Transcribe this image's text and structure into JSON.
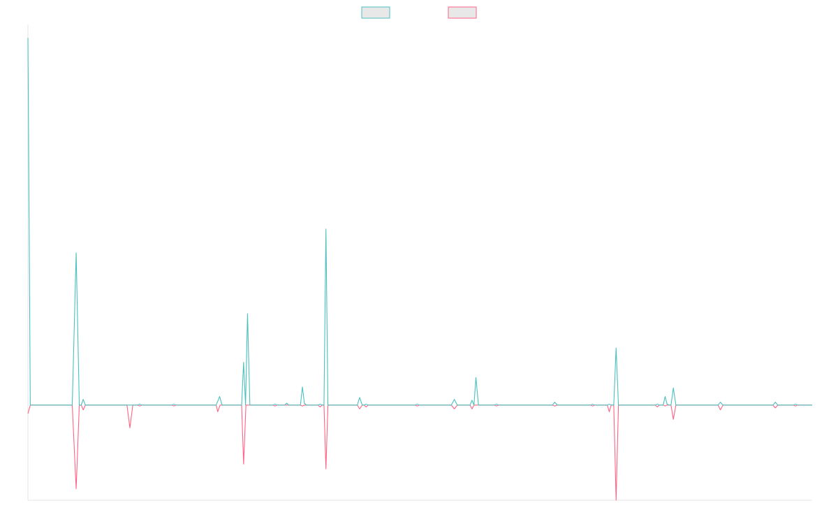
{
  "chart_data": {
    "type": "line",
    "title": "",
    "xlabel": "",
    "ylabel": "",
    "grid": false,
    "legend_position": "top-center",
    "ylim": [
      -1.0,
      4.0
    ],
    "series": [
      {
        "color": "#4bc0c0",
        "fill": "#e8e8e8",
        "points": [
          [
            0.0,
            3.86
          ],
          [
            0.12,
            0.0
          ],
          [
            2.26,
            0.0
          ],
          [
            2.46,
            1.6
          ],
          [
            2.62,
            0.0
          ],
          [
            2.72,
            0.0
          ],
          [
            2.82,
            0.06
          ],
          [
            2.93,
            0.0
          ],
          [
            5.6,
            0.0
          ],
          [
            5.7,
            0.01
          ],
          [
            5.8,
            0.0
          ],
          [
            7.35,
            0.0
          ],
          [
            7.45,
            0.01
          ],
          [
            7.55,
            0.0
          ],
          [
            9.6,
            0.0
          ],
          [
            9.78,
            0.09
          ],
          [
            9.9,
            0.0
          ],
          [
            10.9,
            0.0
          ],
          [
            11.0,
            0.45
          ],
          [
            11.1,
            0.0
          ],
          [
            11.2,
            0.96
          ],
          [
            11.32,
            0.0
          ],
          [
            12.5,
            0.0
          ],
          [
            12.6,
            0.01
          ],
          [
            12.7,
            0.0
          ],
          [
            13.1,
            0.0
          ],
          [
            13.2,
            0.02
          ],
          [
            13.3,
            0.0
          ],
          [
            13.9,
            0.0
          ],
          [
            14.0,
            0.19
          ],
          [
            14.1,
            0.02
          ],
          [
            14.2,
            0.0
          ],
          [
            14.8,
            0.0
          ],
          [
            14.9,
            0.01
          ],
          [
            15.0,
            0.0
          ],
          [
            15.1,
            0.0
          ],
          [
            15.2,
            1.85
          ],
          [
            15.3,
            0.0
          ],
          [
            16.8,
            0.0
          ],
          [
            16.92,
            0.08
          ],
          [
            17.05,
            0.0
          ],
          [
            17.15,
            0.0
          ],
          [
            17.25,
            0.01
          ],
          [
            17.35,
            0.0
          ],
          [
            19.75,
            0.0
          ],
          [
            19.85,
            0.01
          ],
          [
            19.95,
            0.0
          ],
          [
            21.6,
            0.0
          ],
          [
            21.75,
            0.06
          ],
          [
            21.9,
            0.0
          ],
          [
            22.55,
            0.0
          ],
          [
            22.65,
            0.05
          ],
          [
            22.75,
            0.0
          ],
          [
            22.85,
            0.29
          ],
          [
            22.98,
            0.0
          ],
          [
            23.8,
            0.0
          ],
          [
            23.9,
            0.01
          ],
          [
            24.0,
            0.0
          ],
          [
            26.75,
            0.0
          ],
          [
            26.87,
            0.03
          ],
          [
            27.0,
            0.0
          ],
          [
            28.7,
            0.0
          ],
          [
            28.8,
            0.01
          ],
          [
            28.9,
            0.0
          ],
          [
            29.55,
            0.0
          ],
          [
            29.65,
            0.01
          ],
          [
            29.75,
            0.0
          ],
          [
            29.88,
            0.0
          ],
          [
            30.0,
            0.6
          ],
          [
            30.12,
            0.0
          ],
          [
            32.0,
            0.0
          ],
          [
            32.1,
            0.01
          ],
          [
            32.2,
            0.0
          ],
          [
            32.4,
            0.0
          ],
          [
            32.5,
            0.09
          ],
          [
            32.6,
            0.01
          ],
          [
            32.7,
            0.0
          ],
          [
            32.8,
            0.0
          ],
          [
            32.92,
            0.18
          ],
          [
            33.05,
            0.0
          ],
          [
            35.2,
            0.0
          ],
          [
            35.32,
            0.03
          ],
          [
            35.45,
            0.0
          ],
          [
            38.0,
            0.0
          ],
          [
            38.12,
            0.03
          ],
          [
            38.25,
            0.0
          ],
          [
            39.05,
            0.0
          ],
          [
            39.15,
            0.01
          ],
          [
            39.25,
            0.0
          ],
          [
            40.0,
            0.0
          ]
        ]
      },
      {
        "color": "#ff6384",
        "fill": "#e8e8e8",
        "points": [
          [
            0.0,
            -0.09
          ],
          [
            0.12,
            0.0
          ],
          [
            2.26,
            0.0
          ],
          [
            2.46,
            -0.88
          ],
          [
            2.62,
            0.0
          ],
          [
            2.72,
            0.0
          ],
          [
            2.82,
            -0.05
          ],
          [
            2.93,
            0.0
          ],
          [
            5.6,
            0.0
          ],
          [
            5.7,
            -0.01
          ],
          [
            5.8,
            0.0
          ],
          [
            5.05,
            0.0
          ],
          [
            5.2,
            -0.24
          ],
          [
            5.35,
            0.0
          ],
          [
            7.35,
            0.0
          ],
          [
            7.45,
            -0.01
          ],
          [
            7.55,
            0.0
          ],
          [
            9.6,
            0.0
          ],
          [
            9.68,
            -0.07
          ],
          [
            9.8,
            0.0
          ],
          [
            10.9,
            0.0
          ],
          [
            11.0,
            -0.62
          ],
          [
            11.12,
            0.0
          ],
          [
            12.5,
            0.0
          ],
          [
            12.6,
            -0.01
          ],
          [
            12.7,
            0.0
          ],
          [
            13.9,
            0.0
          ],
          [
            14.0,
            -0.01
          ],
          [
            14.1,
            0.0
          ],
          [
            14.8,
            0.0
          ],
          [
            14.9,
            -0.02
          ],
          [
            15.0,
            0.0
          ],
          [
            15.1,
            0.0
          ],
          [
            15.2,
            -0.67
          ],
          [
            15.3,
            0.0
          ],
          [
            16.8,
            0.0
          ],
          [
            16.92,
            -0.04
          ],
          [
            17.05,
            0.0
          ],
          [
            17.15,
            0.0
          ],
          [
            17.25,
            -0.02
          ],
          [
            17.35,
            0.0
          ],
          [
            19.75,
            0.0
          ],
          [
            19.85,
            -0.01
          ],
          [
            19.95,
            0.0
          ],
          [
            21.6,
            0.0
          ],
          [
            21.75,
            -0.04
          ],
          [
            21.9,
            0.0
          ],
          [
            22.55,
            0.0
          ],
          [
            22.65,
            -0.04
          ],
          [
            22.75,
            0.0
          ],
          [
            23.8,
            0.0
          ],
          [
            23.9,
            -0.01
          ],
          [
            24.0,
            0.0
          ],
          [
            26.75,
            0.0
          ],
          [
            26.87,
            -0.01
          ],
          [
            27.0,
            0.0
          ],
          [
            28.7,
            0.0
          ],
          [
            28.8,
            -0.01
          ],
          [
            28.9,
            0.0
          ],
          [
            29.55,
            0.0
          ],
          [
            29.65,
            -0.07
          ],
          [
            29.75,
            0.0
          ],
          [
            29.88,
            0.0
          ],
          [
            30.0,
            -1.0
          ],
          [
            30.12,
            0.0
          ],
          [
            32.0,
            0.0
          ],
          [
            32.1,
            -0.02
          ],
          [
            32.2,
            0.0
          ],
          [
            32.4,
            0.0
          ],
          [
            32.5,
            -0.01
          ],
          [
            32.6,
            0.0
          ],
          [
            32.8,
            0.0
          ],
          [
            32.92,
            -0.15
          ],
          [
            33.05,
            0.0
          ],
          [
            35.2,
            0.0
          ],
          [
            35.32,
            -0.05
          ],
          [
            35.45,
            0.0
          ],
          [
            38.0,
            0.0
          ],
          [
            38.12,
            -0.03
          ],
          [
            38.25,
            0.0
          ],
          [
            39.05,
            0.0
          ],
          [
            39.15,
            -0.01
          ],
          [
            39.25,
            0.0
          ],
          [
            40.0,
            0.0
          ]
        ]
      }
    ]
  }
}
